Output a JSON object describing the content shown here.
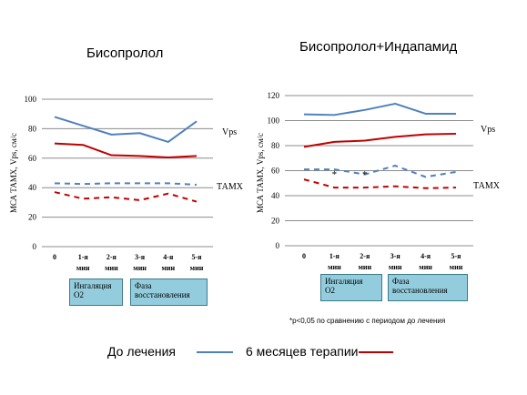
{
  "titles": {
    "left": "Бисопролол",
    "right": "Бисопролол+Индапамид"
  },
  "footnote": "*р<0,05 по сравнению с периодом до лечения",
  "legend": {
    "before": {
      "label": "До лечения",
      "color": "#4f81bd"
    },
    "after": {
      "label": "6 месяцев терапии",
      "color": "#c00000"
    }
  },
  "phases": {
    "left": {
      "inhalation": [
        "Ингаляция",
        "О2"
      ],
      "recovery": [
        "Фаза",
        "восстановления"
      ]
    },
    "right": {
      "inhalation": [
        "Ингаляция",
        "О2"
      ],
      "recovery": [
        "Фаза",
        "восстановления"
      ]
    }
  },
  "chart_data": [
    {
      "type": "line",
      "title": "Бисопролол",
      "ylabel": "МСА ТАМХ, Vps, см/с",
      "ylim": [
        0,
        100
      ],
      "yticks": [
        "0",
        "20",
        "40",
        "60",
        "80",
        "100"
      ],
      "categories": [
        [
          "0",
          ""
        ],
        [
          "1-я",
          "мин"
        ],
        [
          "2-я",
          "мин"
        ],
        [
          "3-я",
          "мин"
        ],
        [
          "4-я",
          "мин"
        ],
        [
          "5-я",
          "мин"
        ]
      ],
      "grid": true,
      "annotations": [
        {
          "text": "Vps",
          "series": "vps"
        },
        {
          "text": "ТАМХ",
          "series": "tamx"
        }
      ],
      "significance": [],
      "series": [
        {
          "key": "vps-before",
          "group": "vps",
          "period": "before",
          "style": "solid",
          "color": "#4f81bd",
          "values": [
            88,
            82,
            76,
            77,
            71,
            85
          ]
        },
        {
          "key": "vps-after",
          "group": "vps",
          "period": "after",
          "style": "solid",
          "color": "#c00000",
          "values": [
            70,
            69,
            62,
            61.5,
            60.5,
            61.5
          ]
        },
        {
          "key": "tamx-before",
          "group": "tamx",
          "period": "before",
          "style": "dashed",
          "color": "#4f81bd",
          "values": [
            43,
            42.5,
            43,
            43,
            43,
            42
          ]
        },
        {
          "key": "tamx-after",
          "group": "tamx",
          "period": "after",
          "style": "dashed",
          "color": "#c00000",
          "values": [
            37,
            32.5,
            33.5,
            31.5,
            36,
            30.5
          ]
        }
      ]
    },
    {
      "type": "line",
      "title": "Бисопролол+Индапамид",
      "ylabel": "МСА ТАМХ, Vps, см/с",
      "ylim": [
        0,
        120
      ],
      "yticks": [
        "0",
        "20",
        "40",
        "60",
        "80",
        "100",
        "120"
      ],
      "categories": [
        [
          "0",
          ""
        ],
        [
          "1-я",
          "мин"
        ],
        [
          "2-я",
          "мин"
        ],
        [
          "3-я",
          "мин"
        ],
        [
          "4-я",
          "мин"
        ],
        [
          "5-я",
          "мин"
        ]
      ],
      "grid": true,
      "annotations": [
        {
          "text": "Vps",
          "series": "vps"
        },
        {
          "text": "ТАМХ",
          "series": "tamx"
        }
      ],
      "significance": [
        {
          "index": 1,
          "text": "*"
        },
        {
          "index": 2,
          "text": "*"
        }
      ],
      "series": [
        {
          "key": "vps-before",
          "group": "vps",
          "period": "before",
          "style": "solid",
          "color": "#4f81bd",
          "values": [
            105,
            104.5,
            108.5,
            113.5,
            105.5,
            105.5
          ]
        },
        {
          "key": "vps-after",
          "group": "vps",
          "period": "after",
          "style": "solid",
          "color": "#c00000",
          "values": [
            79,
            83,
            84,
            87,
            89,
            89.5
          ]
        },
        {
          "key": "tamx-before",
          "group": "tamx",
          "period": "before",
          "style": "dashed",
          "color": "#4f81bd",
          "values": [
            61,
            61,
            57,
            64,
            55,
            59
          ]
        },
        {
          "key": "tamx-after",
          "group": "tamx",
          "period": "after",
          "style": "dashed",
          "color": "#c00000",
          "values": [
            53,
            46.5,
            46.5,
            47.5,
            46,
            46.5
          ]
        }
      ]
    }
  ]
}
